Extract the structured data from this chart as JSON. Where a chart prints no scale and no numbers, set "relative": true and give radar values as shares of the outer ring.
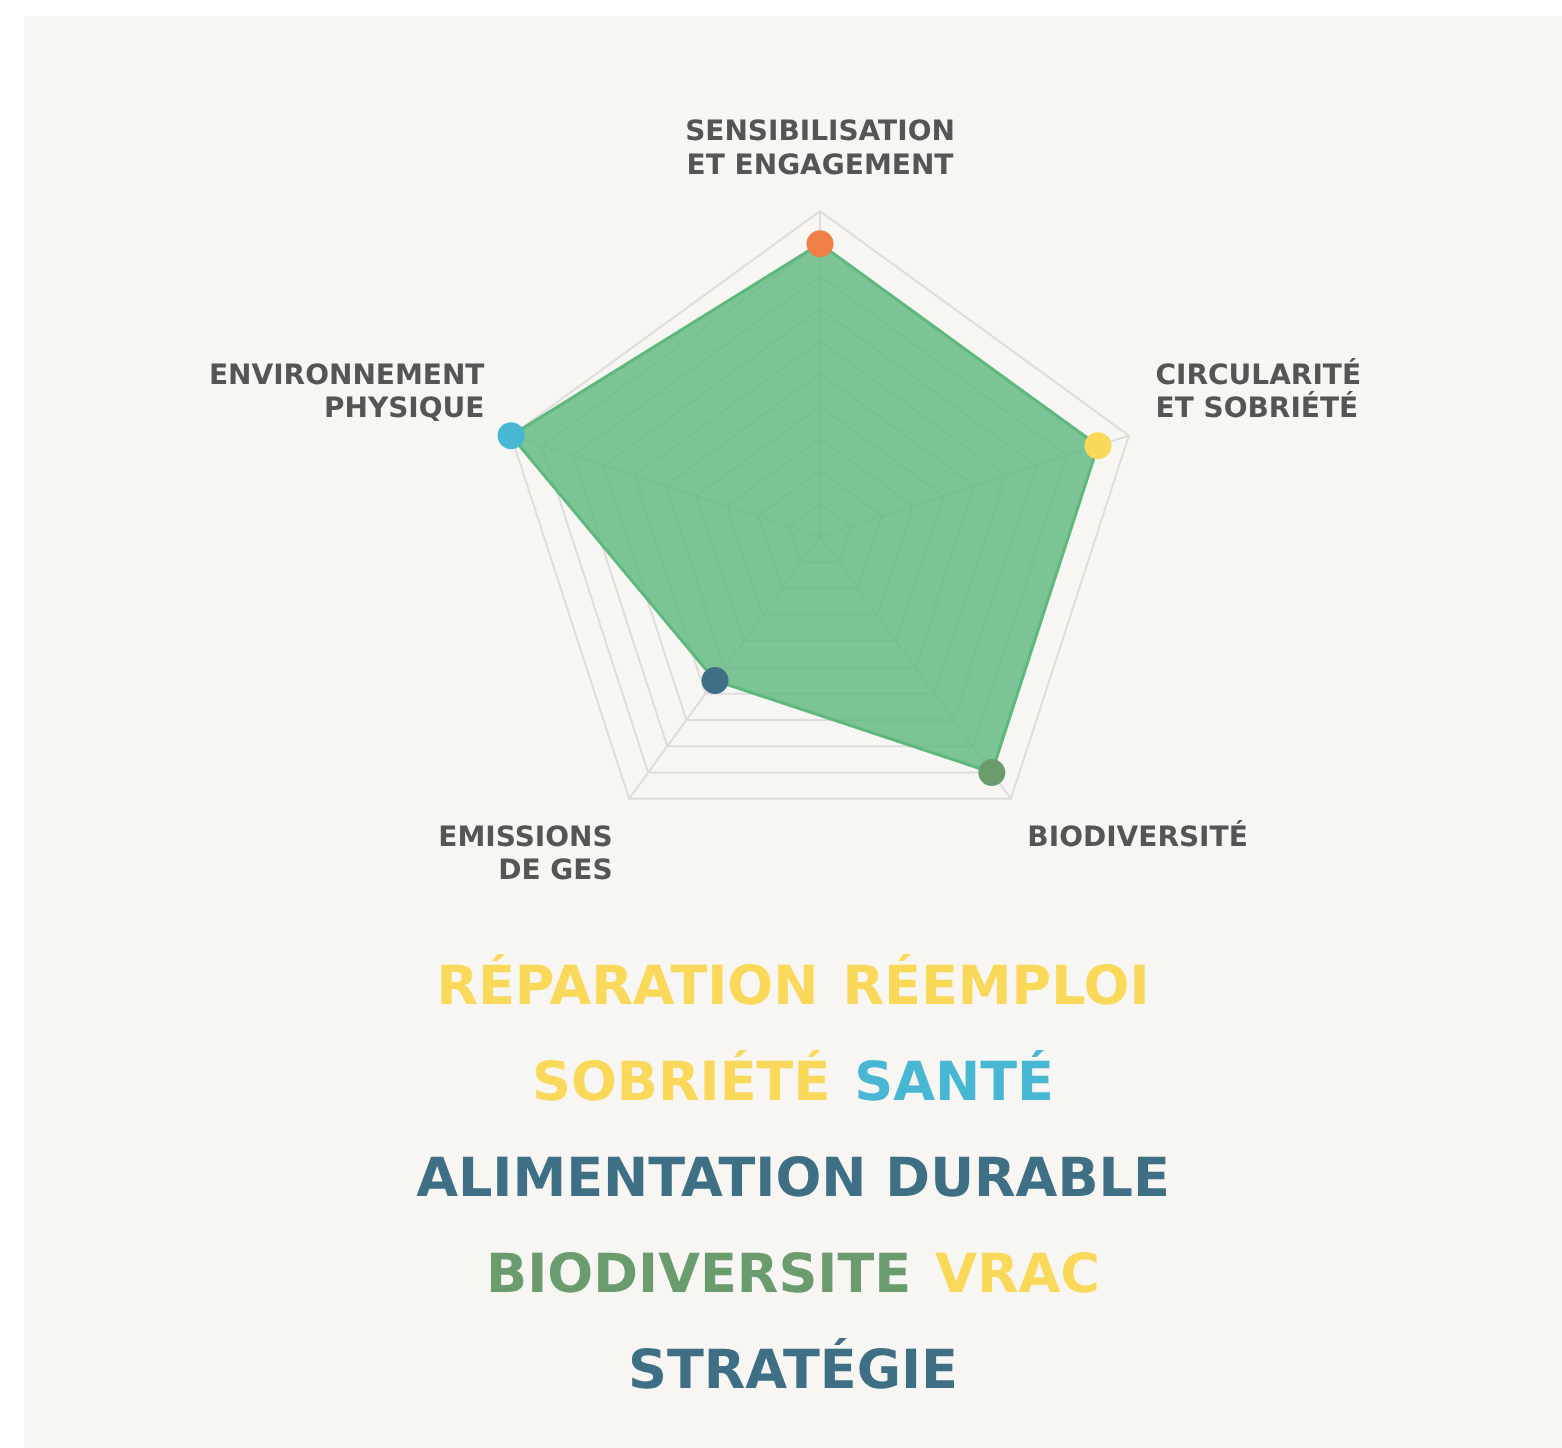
{
  "chart_data": {
    "type": "radar",
    "relative": true,
    "categories": [
      "SENSIBILISATION\nET ENGAGEMENT",
      "CIRCULARITÉ\nET SOBRIÉTÉ",
      "BIODIVERSITÉ",
      "EMISSIONS\nDE GES",
      "ENVIRONNEMENT\nPHYSIQUE"
    ],
    "series": [
      {
        "color": "#5cb87d",
        "values": [
          0.9,
          0.9,
          0.9,
          0.55,
          1.0
        ],
        "colors": [
          "#f07f45",
          "#f9d85a",
          "#6a9c6e",
          "#3f6f85",
          "#48b7d3"
        ]
      }
    ],
    "marker": "circle",
    "grid": true,
    "legend": false,
    "annotations": [
      "RÉPARATION",
      "RÉEMPLOI",
      "SOBRIÉTÉ",
      "SANTÉ",
      "ALIMENTATION DURABLE",
      "BIODIVERSITE",
      "VRAC",
      "STRATÉGIE"
    ]
  }
}
